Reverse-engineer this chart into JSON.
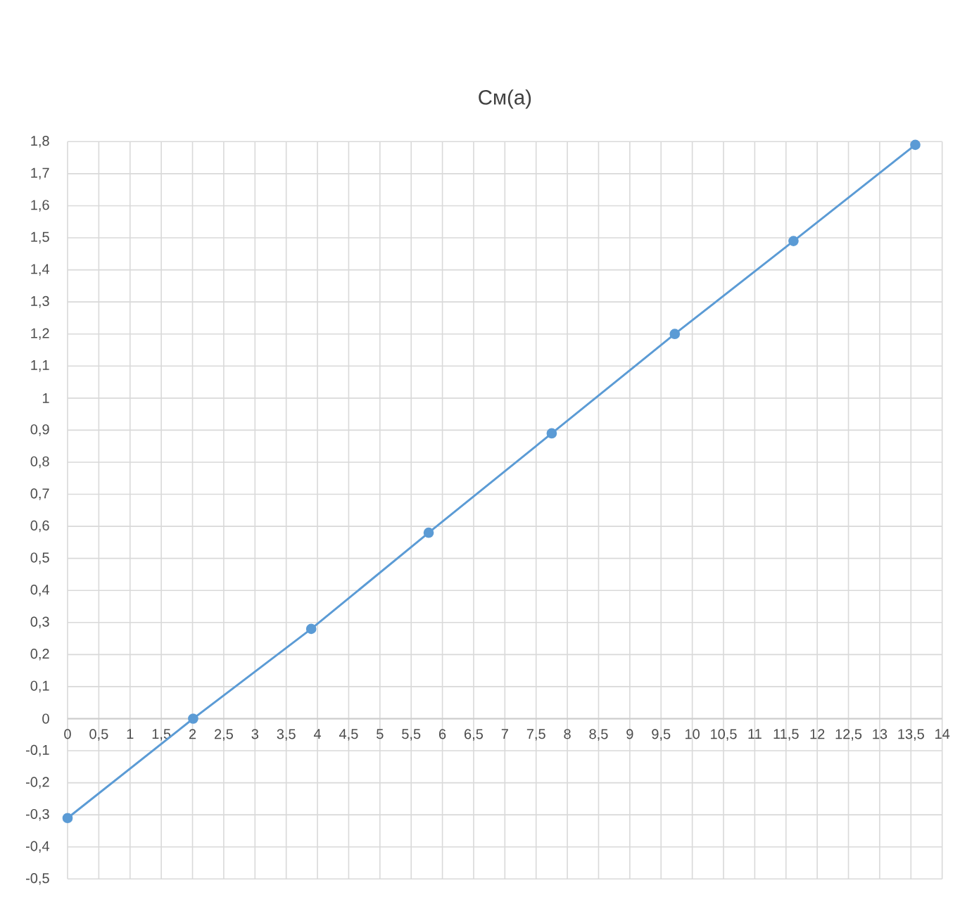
{
  "chart_data": {
    "type": "line",
    "title": "См(а)",
    "x": [
      0,
      2.01,
      3.9,
      5.78,
      7.75,
      9.72,
      11.62,
      13.57
    ],
    "series": [
      {
        "color": "#5b9bd5",
        "values": [
          -0.31,
          0,
          0.28,
          0.58,
          0.89,
          1.2,
          1.49,
          1.79
        ]
      }
    ],
    "xlim": [
      0,
      14
    ],
    "ylim": [
      -0.5,
      1.8
    ],
    "xticks": [
      0,
      {
        "value": 0.5,
        "label": "0,5"
      },
      1,
      {
        "value": 1.5,
        "label": "1,5"
      },
      2,
      {
        "value": 2.5,
        "label": "2,5"
      },
      3,
      {
        "value": 3.5,
        "label": "3,5"
      },
      4,
      {
        "value": 4.5,
        "label": "4,5"
      },
      5,
      {
        "value": 5.5,
        "label": "5,5"
      },
      6,
      {
        "value": 6.5,
        "label": "6,5"
      },
      7,
      {
        "value": 7.5,
        "label": "7,5"
      },
      8,
      {
        "value": 8.5,
        "label": "8,5"
      },
      9,
      {
        "value": 9.5,
        "label": "9,5"
      },
      10,
      {
        "value": 10.5,
        "label": "10,5"
      },
      11,
      {
        "value": 11.5,
        "label": "11,5"
      },
      12,
      {
        "value": 12.5,
        "label": "12,5"
      },
      13,
      {
        "value": 13.5,
        "label": "13,5"
      },
      14
    ],
    "yticks": [
      {
        "value": -0.5,
        "label": "-0,5"
      },
      {
        "value": -0.4,
        "label": "-0,4"
      },
      {
        "value": -0.3,
        "label": "-0,3"
      },
      {
        "value": -0.2,
        "label": "-0,2"
      },
      {
        "value": -0.1,
        "label": "-0,1"
      },
      0,
      {
        "value": 0.1,
        "label": "0,1"
      },
      {
        "value": 0.2,
        "label": "0,2"
      },
      {
        "value": 0.3,
        "label": "0,3"
      },
      {
        "value": 0.4,
        "label": "0,4"
      },
      {
        "value": 0.5,
        "label": "0,5"
      },
      {
        "value": 0.6,
        "label": "0,6"
      },
      {
        "value": 0.7,
        "label": "0,7"
      },
      {
        "value": 0.8,
        "label": "0,8"
      },
      {
        "value": 0.9,
        "label": "0,9"
      },
      1,
      {
        "value": 1.1,
        "label": "1,1"
      },
      {
        "value": 1.2,
        "label": "1,2"
      },
      {
        "value": 1.3,
        "label": "1,3"
      },
      {
        "value": 1.4,
        "label": "1,4"
      },
      {
        "value": 1.5,
        "label": "1,5"
      },
      {
        "value": 1.6,
        "label": "1,6"
      },
      {
        "value": 1.7,
        "label": "1,7"
      },
      {
        "value": 1.8,
        "label": "1,8"
      }
    ],
    "grid": true,
    "marker": "circle",
    "line_style": "solid"
  }
}
